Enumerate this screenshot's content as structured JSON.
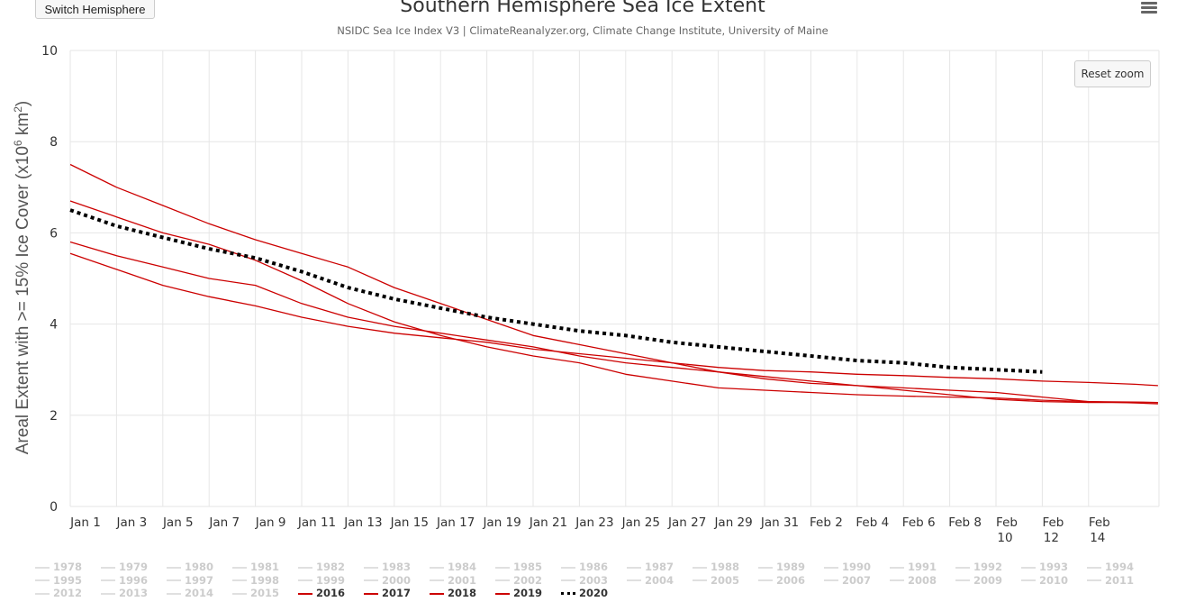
{
  "header": {
    "switch_label": "Switch Hemisphere",
    "title": "Southern Hemisphere Sea Ice Extent",
    "subtitle": "NSIDC Sea Ice Index V3 | ClimateReanalyzer.org, Climate Change Institute, University of Maine",
    "reset_zoom_label": "Reset zoom",
    "menu_icon": "hamburger-menu-icon"
  },
  "chart_data": {
    "type": "line",
    "title": "Southern Hemisphere Sea Ice Extent",
    "subtitle": "NSIDC Sea Ice Index V3 | ClimateReanalyzer.org, Climate Change Institute, University of Maine",
    "ylabel": "Areal Extent with >= 15% Ice Cover (x10^6 km^2)",
    "xlabel": "",
    "ylim": [
      0,
      10
    ],
    "yticks": [
      0,
      2,
      4,
      6,
      8,
      10
    ],
    "x_tick_labels": [
      "Jan 1",
      "Jan 3",
      "Jan 5",
      "Jan 7",
      "Jan 9",
      "Jan 11",
      "Jan 13",
      "Jan 15",
      "Jan 17",
      "Jan 19",
      "Jan 21",
      "Jan 23",
      "Jan 25",
      "Jan 27",
      "Jan 29",
      "Jan 31",
      "Feb 2",
      "Feb 4",
      "Feb 6",
      "Feb 8",
      "Feb 10",
      "Feb 12",
      "Feb 14"
    ],
    "x_day_range": [
      1,
      48
    ],
    "grid": true,
    "legend_placement": "bottom",
    "colors": {
      "active_series": "#cc0000",
      "current_year": "#000000",
      "inactive": "#cccccc",
      "grid": "#e6e6e6"
    },
    "series": [
      {
        "name": "2016",
        "style": "solid",
        "color": "#cc0000",
        "x": [
          1,
          3,
          5,
          7,
          9,
          11,
          13,
          15,
          17,
          19,
          21,
          23,
          25,
          27,
          29,
          31,
          33,
          35,
          37,
          39,
          41,
          43,
          45,
          47,
          48
        ],
        "values": [
          7.5,
          7.0,
          6.6,
          6.2,
          5.85,
          5.55,
          5.25,
          4.8,
          4.45,
          4.1,
          3.75,
          3.55,
          3.35,
          3.15,
          2.95,
          2.8,
          2.7,
          2.65,
          2.6,
          2.55,
          2.5,
          2.4,
          2.3,
          2.27,
          2.25
        ]
      },
      {
        "name": "2017",
        "style": "solid",
        "color": "#cc0000",
        "x": [
          1,
          3,
          5,
          7,
          9,
          11,
          13,
          15,
          17,
          19,
          21,
          23,
          25,
          27,
          29,
          31,
          33,
          35,
          37,
          39,
          41,
          43,
          45,
          47,
          48
        ],
        "values": [
          6.7,
          6.35,
          6.0,
          5.75,
          5.4,
          4.95,
          4.45,
          4.05,
          3.75,
          3.5,
          3.3,
          3.15,
          2.9,
          2.75,
          2.6,
          2.55,
          2.5,
          2.45,
          2.42,
          2.4,
          2.38,
          2.33,
          2.3,
          2.29,
          2.28
        ]
      },
      {
        "name": "2018",
        "style": "solid",
        "color": "#cc0000",
        "x": [
          1,
          3,
          5,
          7,
          9,
          11,
          13,
          15,
          17,
          19,
          21,
          23,
          25,
          27,
          29,
          31,
          33,
          35,
          37,
          39,
          41,
          43,
          45,
          47,
          48
        ],
        "values": [
          5.8,
          5.5,
          5.25,
          5.0,
          4.85,
          4.45,
          4.15,
          3.95,
          3.8,
          3.65,
          3.5,
          3.3,
          3.15,
          3.05,
          2.95,
          2.85,
          2.75,
          2.65,
          2.55,
          2.45,
          2.35,
          2.3,
          2.28,
          2.28,
          2.28
        ]
      },
      {
        "name": "2019",
        "style": "solid",
        "color": "#cc0000",
        "x": [
          1,
          3,
          5,
          7,
          9,
          11,
          13,
          15,
          17,
          19,
          21,
          23,
          25,
          27,
          29,
          31,
          33,
          35,
          37,
          39,
          41,
          43,
          45,
          47,
          48
        ],
        "values": [
          5.55,
          5.2,
          4.85,
          4.6,
          4.4,
          4.15,
          3.95,
          3.8,
          3.7,
          3.6,
          3.45,
          3.35,
          3.25,
          3.15,
          3.05,
          2.98,
          2.95,
          2.9,
          2.87,
          2.83,
          2.8,
          2.75,
          2.72,
          2.68,
          2.65
        ]
      },
      {
        "name": "2020",
        "style": "dotted",
        "color": "#000000",
        "x": [
          1,
          3,
          5,
          7,
          9,
          11,
          13,
          15,
          17,
          19,
          21,
          23,
          25,
          27,
          29,
          31,
          33,
          35,
          37,
          39,
          41,
          43
        ],
        "values": [
          6.5,
          6.15,
          5.9,
          5.65,
          5.45,
          5.15,
          4.8,
          4.55,
          4.35,
          4.15,
          4.0,
          3.85,
          3.75,
          3.6,
          3.5,
          3.4,
          3.3,
          3.2,
          3.15,
          3.05,
          3.0,
          2.95
        ]
      }
    ]
  },
  "legend": {
    "items": [
      "1978",
      "1979",
      "1980",
      "1981",
      "1982",
      "1983",
      "1984",
      "1985",
      "1986",
      "1987",
      "1988",
      "1989",
      "1990",
      "1991",
      "1992",
      "1993",
      "1994",
      "1995",
      "1996",
      "1997",
      "1998",
      "1999",
      "2000",
      "2001",
      "2002",
      "2003",
      "2004",
      "2005",
      "2006",
      "2007",
      "2008",
      "2009",
      "2010",
      "2011",
      "2012",
      "2013",
      "2014",
      "2015",
      "2016",
      "2017",
      "2018",
      "2019",
      "2020"
    ],
    "active": [
      "2016",
      "2017",
      "2018",
      "2019",
      "2020"
    ],
    "dotted": [
      "2020"
    ]
  }
}
